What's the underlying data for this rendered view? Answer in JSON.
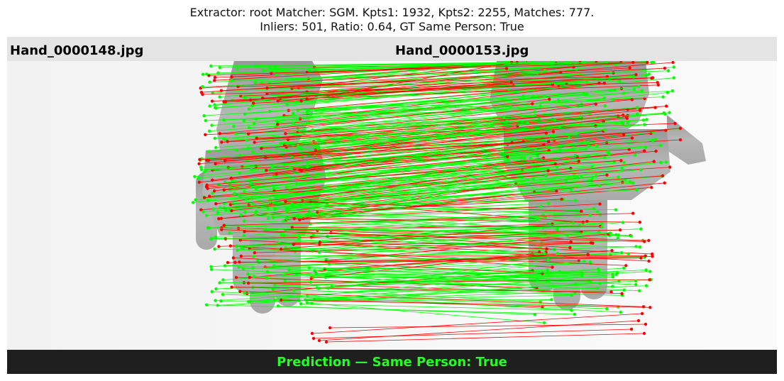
{
  "title": {
    "line1": "Extractor:  root Matcher: SGM. Kpts1: 1932, Kpts2: 2255, Matches: 777.",
    "line2": "Inliers: 501, Ratio: 0.64, GT Same Person: True"
  },
  "left_image": {
    "filename": "Hand_0000148.jpg"
  },
  "right_image": {
    "filename": "Hand_0000153.jpg"
  },
  "prediction": {
    "text": "Prediction — Same Person: True",
    "color": "#22ff22"
  },
  "colors": {
    "inlier": "#00ff00",
    "outlier": "#ff0000",
    "header_bg": "#e4e4e4",
    "footer_bg": "#1f1f1f"
  }
}
